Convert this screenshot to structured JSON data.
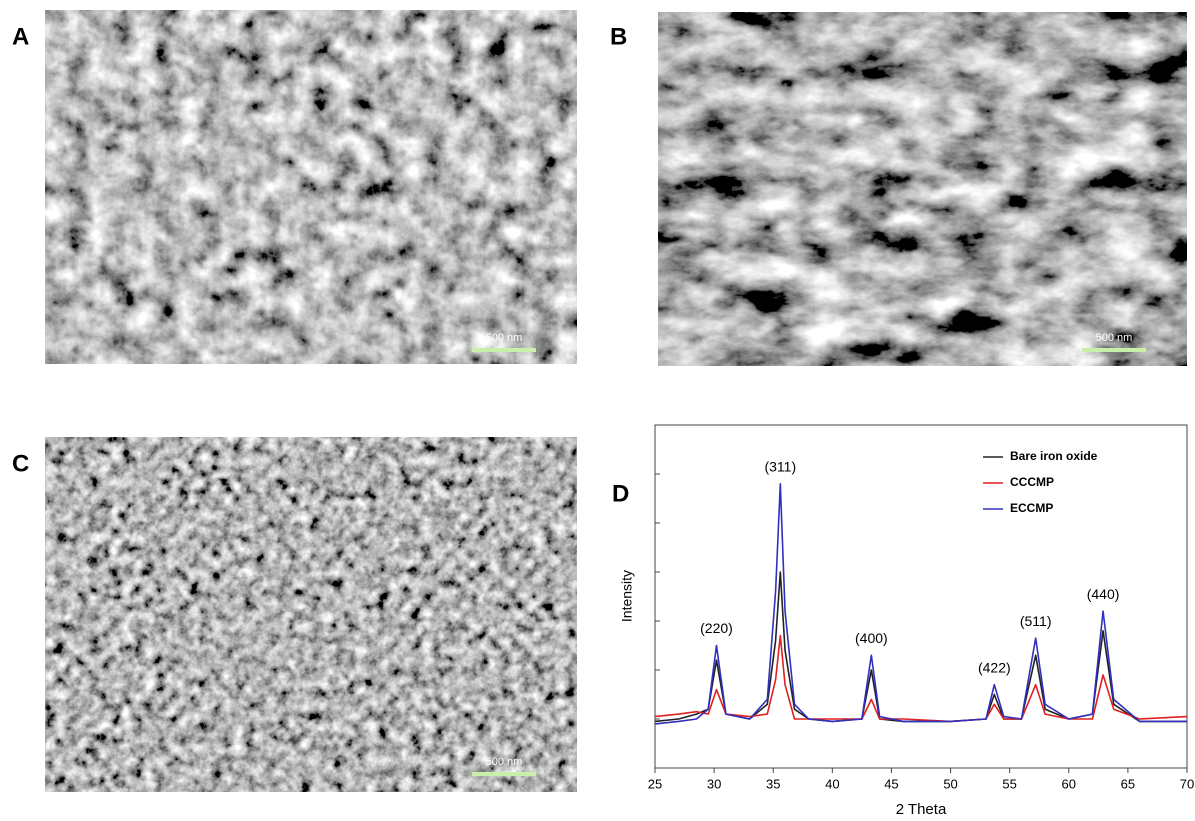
{
  "panels": [
    {
      "label": "A",
      "scale_bar": "500 nm"
    },
    {
      "label": "B",
      "scale_bar": "500 nm"
    },
    {
      "label": "C",
      "scale_bar": "500 nm"
    }
  ],
  "chart_data": {
    "type": "line",
    "label": "D",
    "x_label": "2 Theta",
    "y_label": "Intensity",
    "xlim": [
      25,
      70
    ],
    "xticks": [
      25,
      30,
      35,
      40,
      45,
      50,
      55,
      60,
      65,
      70
    ],
    "ylim": [
      0,
      7
    ],
    "yticks": [
      0,
      1,
      2,
      3,
      4,
      5,
      6,
      7
    ],
    "legend": "upper right",
    "x": [
      25,
      27,
      28.5,
      29.5,
      30.2,
      31,
      33,
      34.5,
      35.2,
      35.6,
      36,
      36.8,
      38,
      40,
      42.5,
      43.3,
      44,
      46,
      50,
      53,
      53.7,
      54.5,
      56,
      57.2,
      58,
      60,
      62,
      62.9,
      63.8,
      66,
      70
    ],
    "series": [
      {
        "name": "Bare iron oxide",
        "color": "#222222",
        "values": [
          0.95,
          1.0,
          1.1,
          1.2,
          2.2,
          1.1,
          1.0,
          1.3,
          2.6,
          4.0,
          2.4,
          1.2,
          1.0,
          0.95,
          1.0,
          2.0,
          1.0,
          0.95,
          0.95,
          1.0,
          1.5,
          1.0,
          1.0,
          2.3,
          1.2,
          1.0,
          1.1,
          2.8,
          1.3,
          0.95,
          0.95
        ]
      },
      {
        "name": "CCCMP",
        "color": "#e02020",
        "values": [
          1.05,
          1.1,
          1.15,
          1.1,
          1.6,
          1.1,
          1.05,
          1.1,
          1.8,
          2.7,
          1.7,
          1.0,
          1.0,
          1.0,
          1.0,
          1.4,
          1.0,
          1.0,
          0.95,
          1.0,
          1.3,
          1.0,
          1.0,
          1.7,
          1.1,
          1.0,
          1.0,
          1.9,
          1.2,
          1.0,
          1.05
        ]
      },
      {
        "name": "ECCMP",
        "color": "#3030c0",
        "values": [
          0.9,
          0.95,
          1.0,
          1.2,
          2.5,
          1.1,
          1.0,
          1.4,
          3.6,
          5.8,
          3.2,
          1.3,
          1.0,
          0.95,
          1.0,
          2.3,
          1.05,
          0.95,
          0.95,
          1.0,
          1.7,
          1.05,
          1.0,
          2.65,
          1.3,
          1.0,
          1.1,
          3.2,
          1.4,
          0.95,
          0.95
        ]
      }
    ],
    "annotations": [
      {
        "label": "(220)",
        "x": 30.2
      },
      {
        "label": "(311)",
        "x": 35.6
      },
      {
        "label": "(400)",
        "x": 43.3
      },
      {
        "label": "(422)",
        "x": 53.7
      },
      {
        "label": "(511)",
        "x": 57.2
      },
      {
        "label": "(440)",
        "x": 62.9
      }
    ]
  }
}
